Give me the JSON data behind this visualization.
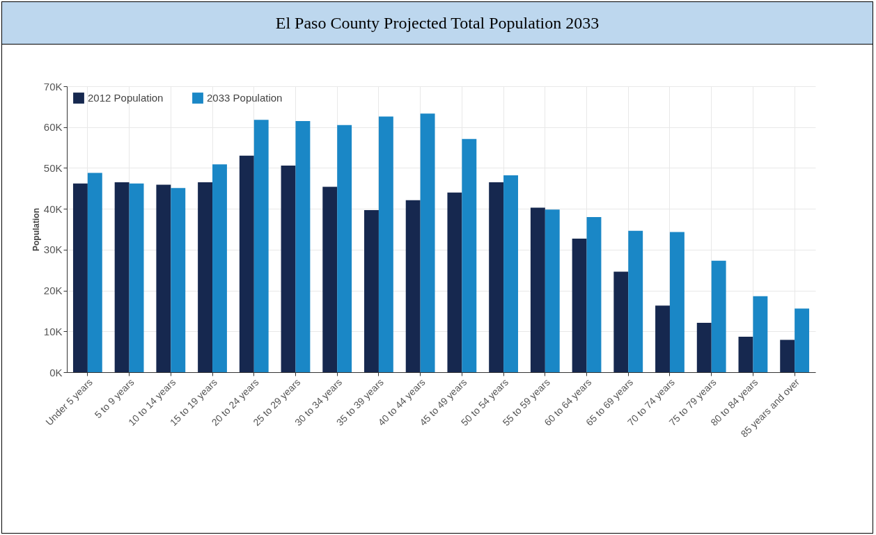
{
  "chart_data": {
    "type": "bar",
    "title": "El Paso County Projected Total Population 2033",
    "ylabel": "Population",
    "categories": [
      "Under 5 years",
      "5 to 9 years",
      "10 to 14 years",
      "15 to 19 years",
      "20 to 24 years",
      "25 to 29 years",
      "30 to 34 years",
      "35 to 39 years",
      "40 to 44 years",
      "45 to 49 years",
      "50 to 54 years",
      "55 to 59 years",
      "60 to 64 years",
      "65 to 69 years",
      "70 to 74 years",
      "75 to 79 years",
      "80 to 84 years",
      "85 years and over"
    ],
    "series": [
      {
        "name": "2012 Population",
        "color": "#16284f",
        "values": [
          46200,
          46500,
          45900,
          46500,
          53000,
          50600,
          45400,
          39700,
          42100,
          44000,
          46500,
          40300,
          32700,
          24600,
          16300,
          12100,
          8700,
          7900
        ]
      },
      {
        "name": "2033 Population",
        "color": "#1a87c6",
        "values": [
          48800,
          46200,
          45100,
          50900,
          61800,
          61500,
          60500,
          62600,
          63300,
          57100,
          48200,
          39800,
          38000,
          34600,
          34300,
          27300,
          18600,
          15600
        ]
      }
    ],
    "ylim": [
      0,
      70000
    ],
    "yticks": [
      {
        "value": 0,
        "label": "0K"
      },
      {
        "value": 10000,
        "label": "10K"
      },
      {
        "value": 20000,
        "label": "20K"
      },
      {
        "value": 30000,
        "label": "30K"
      },
      {
        "value": 40000,
        "label": "40K"
      },
      {
        "value": 50000,
        "label": "50K"
      },
      {
        "value": 60000,
        "label": "60K"
      },
      {
        "value": 70000,
        "label": "70K"
      }
    ],
    "grid": true,
    "legend": "top left"
  }
}
